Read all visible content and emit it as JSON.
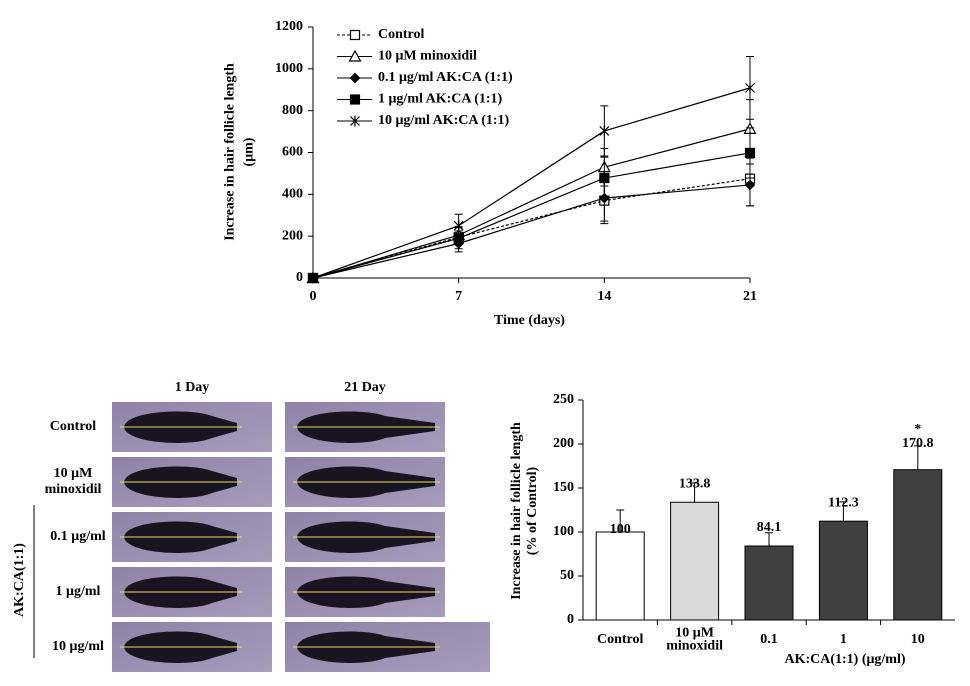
{
  "chart_data": [
    {
      "type": "line",
      "ylabel": [
        "Increase in hair follicle length",
        "(μm)"
      ],
      "xlabel": "Time (days)",
      "x": [
        0,
        7,
        14,
        21
      ],
      "xlim": [
        0,
        21
      ],
      "xticks": [
        0,
        7,
        14,
        21
      ],
      "ylim": [
        0,
        1200
      ],
      "yticks": [
        0,
        200,
        400,
        600,
        800,
        1000,
        1200
      ],
      "series": [
        {
          "name": "Control",
          "color": "#000000",
          "marker": "square-open",
          "dashed": true,
          "values": [
            0,
            195,
            370,
            475
          ],
          "errors": [
            0,
            30,
            110,
            130
          ]
        },
        {
          "name": "10 μM minoxidil",
          "color": "#000000",
          "marker": "triangle-open",
          "dashed": false,
          "values": [
            0,
            205,
            530,
            713
          ],
          "errors": [
            0,
            40,
            90,
            140
          ]
        },
        {
          "name": "0.1 μg/ml AK:CA (1:1)",
          "color": "#000000",
          "marker": "diamond",
          "dashed": false,
          "values": [
            0,
            165,
            382,
            445
          ],
          "errors": [
            0,
            40,
            110,
            100
          ]
        },
        {
          "name": "1 μg/ml AK:CA (1:1)",
          "color": "#000000",
          "marker": "square",
          "dashed": false,
          "values": [
            0,
            190,
            478,
            598
          ],
          "errors": [
            0,
            50,
            100,
            120
          ]
        },
        {
          "name": "10 μg/ml AK:CA (1:1)",
          "color": "#000000",
          "marker": "star",
          "dashed": false,
          "values": [
            0,
            250,
            703,
            909
          ],
          "errors": [
            0,
            55,
            120,
            150
          ]
        }
      ]
    },
    {
      "type": "bar",
      "ylabel": [
        "Increase in hair follicle length",
        "(% of Control)"
      ],
      "xlabel": "AK:CA(1:1)  (μg/ml)",
      "categories": [
        [
          "Control"
        ],
        [
          "10 μM",
          "minoxidil"
        ],
        [
          "0.1"
        ],
        [
          "1"
        ],
        [
          "10"
        ]
      ],
      "values": [
        100,
        133.8,
        84.1,
        112.3,
        170.8
      ],
      "errors": [
        25,
        22,
        15,
        22,
        27
      ],
      "colors": [
        "#ffffff",
        "#d9d9d9",
        "#404040",
        "#404040",
        "#404040"
      ],
      "annotations": [
        null,
        null,
        null,
        null,
        "*"
      ],
      "ylim": [
        0,
        250
      ],
      "yticks": [
        0,
        50,
        100,
        150,
        200,
        250
      ]
    }
  ],
  "image_panel": {
    "columns": [
      "1 Day",
      "21 Day"
    ],
    "rows": [
      "Control",
      [
        "10 μM",
        "minoxidil"
      ],
      "0.1 μg/ml",
      "1 μg/ml",
      "10 μg/ml"
    ],
    "group_label": "AK:CA(1:1)"
  }
}
